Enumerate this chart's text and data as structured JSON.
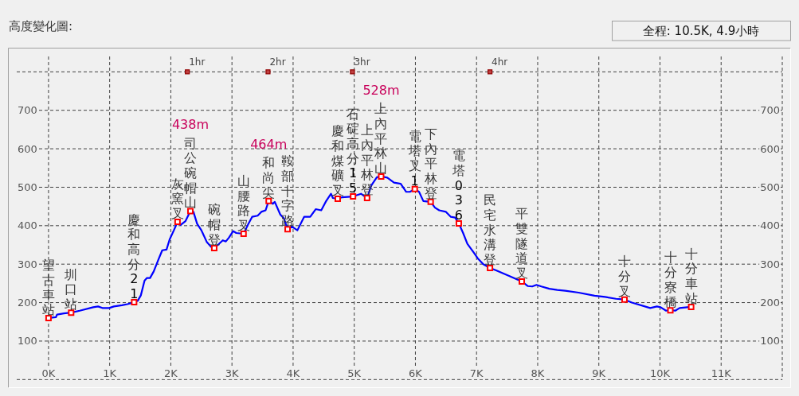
{
  "chart_data": {
    "type": "line",
    "title": "高度變化圖:",
    "subtitle": "全程: 10.5K, 4.9小時",
    "xlim": [
      -0.52,
      12
    ],
    "xticks": [
      {
        "value": 0,
        "label": "0K"
      },
      {
        "value": 1,
        "label": "1K"
      },
      {
        "value": 2,
        "label": "2K"
      },
      {
        "value": 3,
        "label": "3K"
      },
      {
        "value": 4,
        "label": "4K"
      },
      {
        "value": 5,
        "label": "5K"
      },
      {
        "value": 6,
        "label": "6K"
      },
      {
        "value": 7,
        "label": "7K"
      },
      {
        "value": 8,
        "label": "8K"
      },
      {
        "value": 9,
        "label": "9K"
      },
      {
        "value": 10,
        "label": "10K"
      },
      {
        "value": 11,
        "label": "11K"
      },
      {
        "value": 12,
        "label": null
      }
    ],
    "ylim": [
      0,
      840
    ],
    "yticks": [
      {
        "value": 0,
        "label": null
      },
      100,
      200,
      300,
      400,
      500,
      600,
      700,
      {
        "value": 800,
        "label": null
      }
    ],
    "y2lim": [
      0,
      840
    ],
    "y2ticks": [
      100,
      200,
      300,
      400,
      500,
      600,
      700
    ],
    "grid": true,
    "series": [
      {
        "color": "#0000ff",
        "x": [
          0,
          0.12,
          0.14,
          0.25,
          0.37,
          0.51,
          0.73,
          0.81,
          0.88,
          0.99,
          1.07,
          1.2,
          1.29,
          1.4,
          1.46,
          1.51,
          1.57,
          1.61,
          1.66,
          1.72,
          1.8,
          1.86,
          1.93,
          1.98,
          2.05,
          2.11,
          2.16,
          2.24,
          2.32,
          2.37,
          2.43,
          2.5,
          2.59,
          2.66,
          2.71,
          2.79,
          2.85,
          2.9,
          2.95,
          3.02,
          3.07,
          3.19,
          3.26,
          3.33,
          3.42,
          3.48,
          3.55,
          3.6,
          3.67,
          3.7,
          3.79,
          3.85,
          3.91,
          3.98,
          4.07,
          4.18,
          4.28,
          4.37,
          4.46,
          4.54,
          4.62,
          4.65,
          4.73,
          4.8,
          4.98,
          5.11,
          5.21,
          5.28,
          5.37,
          5.44,
          5.54,
          5.65,
          5.76,
          5.85,
          5.91,
          5.99,
          6.06,
          6.13,
          6.25,
          6.32,
          6.39,
          6.5,
          6.58,
          6.65,
          6.71,
          6.78,
          6.85,
          6.95,
          7.02,
          7.11,
          7.22,
          7.32,
          7.54,
          7.74,
          7.84,
          7.91,
          7.98,
          8.06,
          8.19,
          8.32,
          8.45,
          8.67,
          8.93,
          9.1,
          9.28,
          9.42,
          9.54,
          9.84,
          9.95,
          10.01,
          10.1,
          10.17,
          10.25,
          10.32,
          10.51
        ],
        "values": [
          160,
          162,
          169,
          172,
          174,
          179,
          188,
          190,
          186,
          186,
          190,
          193,
          196,
          201,
          205,
          219,
          257,
          264,
          264,
          281,
          313,
          336,
          338,
          364,
          388,
          410,
          402,
          412,
          438,
          436,
          405,
          388,
          357,
          345,
          342,
          353,
          362,
          359,
          369,
          386,
          381,
          379,
          402,
          423,
          426,
          436,
          440,
          464,
          457,
          462,
          429,
          419,
          391,
          398,
          388,
          423,
          423,
          443,
          440,
          464,
          483,
          472,
          470,
          474,
          476,
          483,
          472,
          505,
          526,
          528,
          525,
          512,
          509,
          488,
          488,
          495,
          488,
          464,
          462,
          447,
          440,
          436,
          423,
          421,
          406,
          381,
          353,
          331,
          315,
          300,
          290,
          284,
          269,
          255,
          243,
          242,
          246,
          242,
          236,
          233,
          231,
          226,
          218,
          215,
          210,
          208,
          200,
          186,
          190,
          188,
          179,
          180,
          179,
          186,
          189
        ]
      },
      {
        "type": "scatter",
        "color": "#ff0000",
        "marker": "square",
        "x": [
          0,
          0.37,
          1.4,
          2.11,
          2.32,
          2.71,
          3.19,
          3.6,
          3.91,
          4.73,
          4.98,
          5.21,
          5.44,
          5.99,
          6.25,
          6.71,
          7.22,
          7.74,
          9.42,
          10.17,
          10.51
        ],
        "values": [
          160,
          174,
          201,
          410,
          438,
          342,
          379,
          464,
          391,
          470,
          476,
          472,
          528,
          495,
          462,
          406,
          290,
          255,
          208,
          180,
          189
        ]
      }
    ],
    "annotations": [
      {
        "text": "1hr",
        "x": 2.27,
        "y": 800
      },
      {
        "text": "2hr",
        "x": 3.59,
        "y": 800
      },
      {
        "text": "3hr",
        "x": 4.97,
        "y": 800
      },
      {
        "text": "4hr",
        "x": 7.22,
        "y": 800
      },
      {
        "text": "望古車站",
        "x": 0,
        "y": 160
      },
      {
        "text": "圳口站",
        "x": 0.37,
        "y": 174
      },
      {
        "text": "慶和高分21",
        "x": 1.4,
        "y": 201
      },
      {
        "text": "灰窯叉",
        "x": 2.11,
        "y": 410
      },
      {
        "text": "司公碗帽山",
        "x": 2.32,
        "y": 438
      },
      "438m",
      {
        "text": "碗帽登",
        "x": 2.71,
        "y": 342
      },
      {
        "text": "山腰路叉",
        "x": 3.19,
        "y": 379
      },
      {
        "text": "和尚尖",
        "x": 3.6,
        "y": 464
      },
      "464m",
      {
        "text": "鞍部十字路",
        "x": 3.91,
        "y": 391
      },
      {
        "text": "慶和煤礦叉",
        "x": 4.73,
        "y": 470
      },
      {
        "text": "石碇高分15",
        "x": 4.98,
        "y": 476
      },
      {
        "text": "上內平林登",
        "x": 5.21,
        "y": 472
      },
      {
        "text": "上內平林山",
        "x": 5.44,
        "y": 528
      },
      "528m",
      {
        "text": "電塔叉1",
        "x": 5.99,
        "y": 495
      },
      {
        "text": "下內平林登",
        "x": 6.25,
        "y": 462
      },
      {
        "text": "電塔036",
        "x": 6.71,
        "y": 406
      },
      {
        "text": "民宅水溝登",
        "x": 7.22,
        "y": 290
      },
      {
        "text": "平雙隧道叉",
        "x": 7.74,
        "y": 255
      },
      {
        "text": "十分叉",
        "x": 9.42,
        "y": 208
      },
      {
        "text": "十分寮橋",
        "x": 10.17,
        "y": 180
      },
      {
        "text": "十分車站",
        "x": 10.51,
        "y": 189
      }
    ]
  }
}
